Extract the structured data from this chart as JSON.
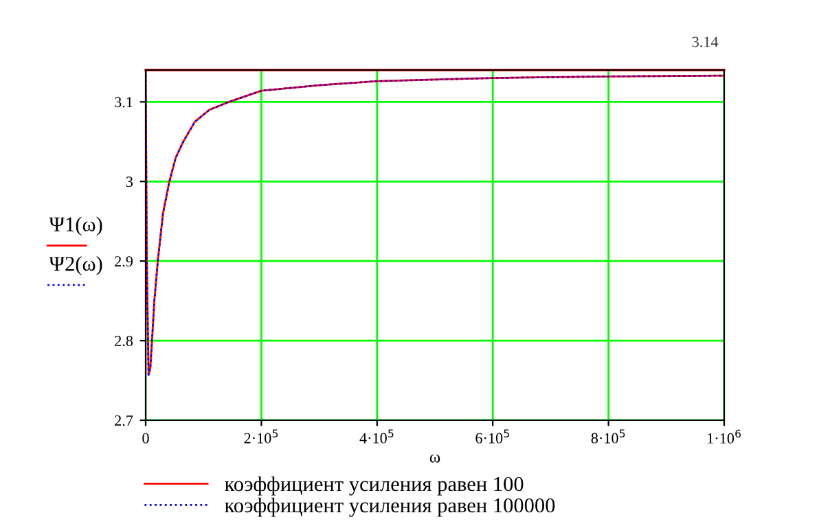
{
  "chart_data": {
    "type": "line",
    "xlabel": "ω",
    "ylabel": "Ψ1(ω)\nΨ2(ω)",
    "x": [
      0,
      2000,
      5000,
      8000,
      11000,
      15000,
      21000,
      30000,
      41000,
      52000,
      65000,
      85000,
      110000,
      144000,
      200000,
      300000,
      400000,
      500000,
      600000,
      800000,
      1000000
    ],
    "series": [
      {
        "name": "коэффициент усиления равен 100",
        "color": "#ff0000",
        "line_style": "solid",
        "values": [
          3.14,
          2.9,
          2.757,
          2.765,
          2.8,
          2.85,
          2.9,
          2.96,
          3.0,
          3.03,
          3.05,
          3.075,
          3.09,
          3.1,
          3.114,
          3.121,
          3.126,
          3.128,
          3.13,
          3.132,
          3.133
        ]
      },
      {
        "name": "коэффициент усиления равен 100000",
        "color": "#0000ff",
        "line_style": "dotted",
        "values": [
          3.14,
          2.9,
          2.757,
          2.765,
          2.8,
          2.85,
          2.9,
          2.96,
          3.0,
          3.03,
          3.05,
          3.075,
          3.09,
          3.1,
          3.114,
          3.121,
          3.126,
          3.128,
          3.13,
          3.132,
          3.133
        ]
      }
    ],
    "xlim": [
      0,
      1000000
    ],
    "xticks": [
      0,
      {
        "value": 200000,
        "label": "2·10$^{5}$"
      },
      {
        "value": 400000,
        "label": "4·10$^{5}$"
      },
      {
        "value": 600000,
        "label": "6·10$^{5}$"
      },
      {
        "value": 800000,
        "label": "8·10$^{5}$"
      },
      {
        "value": 1000000,
        "label": "1·10$^{6}$"
      }
    ],
    "ylim": [
      2.7,
      3.14
    ],
    "yticks": [
      2.7,
      2.8,
      2.9,
      3,
      3.1
    ],
    "ref_lines": [
      {
        "axis": "y",
        "value": 3.14,
        "label": "3.14",
        "color": "#ff0000"
      }
    ],
    "grid": true,
    "legend": "bottom"
  }
}
